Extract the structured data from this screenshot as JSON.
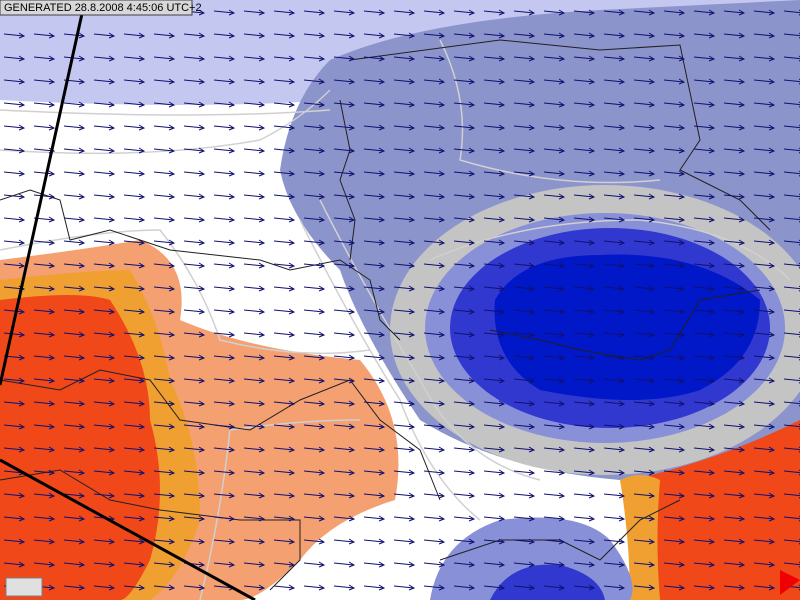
{
  "header": {
    "generated": "GENERATED 28.8.2008 4:45:06 UTC+2"
  }
}
